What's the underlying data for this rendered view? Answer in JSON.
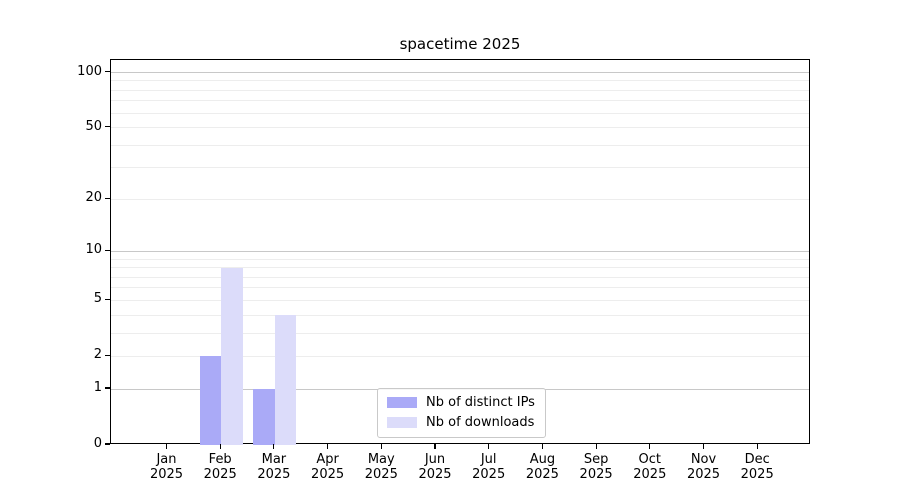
{
  "title": "spacetime 2025",
  "chart_data": {
    "type": "bar",
    "title": "spacetime 2025",
    "categories": [
      "Jan 2025",
      "Feb 2025",
      "Mar 2025",
      "Apr 2025",
      "May 2025",
      "Jun 2025",
      "Jul 2025",
      "Aug 2025",
      "Sep 2025",
      "Oct 2025",
      "Nov 2025",
      "Dec 2025"
    ],
    "series": [
      {
        "name": "Nb of distinct IPs",
        "color": "#aaaaf7",
        "values": [
          0,
          2,
          1,
          0,
          0,
          0,
          0,
          0,
          0,
          0,
          0,
          0
        ]
      },
      {
        "name": "Nb of downloads",
        "color": "#dcdcfa",
        "values": [
          0,
          8,
          4,
          0,
          0,
          0,
          0,
          0,
          0,
          0,
          0,
          0
        ]
      }
    ],
    "xlabel": "",
    "ylabel": "",
    "y_scale": "log1p",
    "ylim": [
      0,
      117
    ],
    "y_tick_values": [
      0,
      1,
      2,
      5,
      10,
      20,
      50,
      100
    ],
    "y_tick_labels": [
      "0",
      "1",
      "2",
      "5",
      "10",
      "20",
      "50",
      "100"
    ],
    "y_major_gridlines": [
      1,
      10,
      100
    ],
    "y_minor_gridlines": [
      2,
      3,
      4,
      5,
      6,
      7,
      8,
      9,
      20,
      30,
      40,
      50,
      60,
      70,
      80,
      90
    ],
    "grid": true,
    "legend_position": "lower center"
  },
  "colors": {
    "major_gridline": "#c8c8c8",
    "minor_gridline": "#ededed",
    "axis": "#000000",
    "background": "#ffffff"
  }
}
